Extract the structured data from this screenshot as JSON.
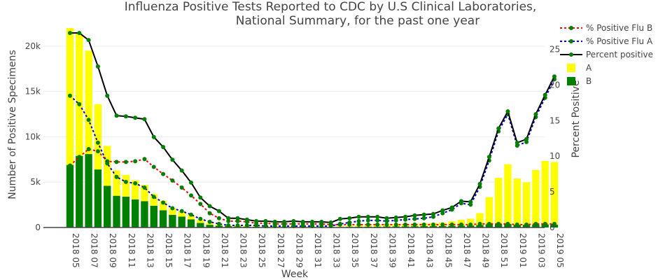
{
  "chart_data": {
    "type": "bar",
    "title_lines": [
      "Influenza Positive Tests Reported to CDC by U.S Clinical Laboratories,",
      "National Summary, for the past one year"
    ],
    "xlabel": "Week",
    "ylabel_left": "Number of Positive Specimens",
    "ylabel_right": "Percent Positive",
    "ylim_left": [
      0,
      22000
    ],
    "ylim_right": [
      0,
      28
    ],
    "yticks_left": [
      0,
      5000,
      10000,
      15000,
      20000
    ],
    "ytick_labels_left": [
      "0",
      "5k",
      "10k",
      "15k",
      "20k"
    ],
    "yticks_right": [
      0,
      5,
      10,
      15,
      20,
      25
    ],
    "ytick_labels_right": [
      "0",
      "5",
      "10",
      "15",
      "20",
      "25"
    ],
    "grid": true,
    "legend_position": "top-right",
    "categories": [
      "2018 05",
      "2018 06",
      "2018 07",
      "2018 08",
      "2018 09",
      "2018 10",
      "2018 11",
      "2018 12",
      "2018 13",
      "2018 14",
      "2018 15",
      "2018 16",
      "2018 17",
      "2018 18",
      "2018 19",
      "2018 20",
      "2018 21",
      "2018 22",
      "2018 23",
      "2018 24",
      "2018 25",
      "2018 26",
      "2018 27",
      "2018 28",
      "2018 29",
      "2018 30",
      "2018 31",
      "2018 32",
      "2018 33",
      "2018 34",
      "2018 35",
      "2018 36",
      "2018 37",
      "2018 38",
      "2018 39",
      "2018 40",
      "2018 41",
      "2018 42",
      "2018 43",
      "2018 44",
      "2018 45",
      "2018 46",
      "2018 47",
      "2018 48",
      "2018 49",
      "2018 50",
      "2018 51",
      "2018 52",
      "2019 01",
      "2019 02",
      "2019 03",
      "2019 04",
      "2019 05"
    ],
    "xtick_labels": [
      "2018 05",
      "2018 07",
      "2018 09",
      "2018 11",
      "2018 13",
      "2018 15",
      "2018 17",
      "2018 19",
      "2018 21",
      "2018 23",
      "2018 25",
      "2018 27",
      "2018 29",
      "2018 31",
      "2018 33",
      "2018 35",
      "2018 37",
      "2018 39",
      "2018 41",
      "2018 43",
      "2018 45",
      "2018 47",
      "2018 49",
      "2018 51",
      "2019 01",
      "2019 03",
      "2019 05"
    ],
    "bar_series": [
      {
        "name": "A",
        "color": "#ffff00",
        "values": [
          15100,
          13500,
          11400,
          7200,
          4400,
          2800,
          2400,
          2100,
          1800,
          1300,
          1050,
          750,
          600,
          480,
          330,
          210,
          140,
          110,
          100,
          90,
          80,
          70,
          65,
          60,
          60,
          60,
          60,
          60,
          70,
          80,
          110,
          150,
          180,
          200,
          220,
          250,
          280,
          300,
          330,
          350,
          400,
          500,
          650,
          750,
          1300,
          3000,
          5100,
          6600,
          5100,
          4700,
          6000,
          7000,
          6900
        ]
      },
      {
        "name": "B",
        "color": "#008000",
        "values": [
          6900,
          7900,
          8100,
          6400,
          4600,
          3500,
          3400,
          3100,
          2900,
          2400,
          1900,
          1400,
          1200,
          900,
          500,
          300,
          200,
          150,
          120,
          100,
          80,
          70,
          60,
          60,
          60,
          50,
          50,
          50,
          50,
          60,
          70,
          90,
          100,
          100,
          110,
          120,
          130,
          140,
          150,
          150,
          160,
          180,
          200,
          220,
          280,
          350,
          380,
          380,
          300,
          300,
          340,
          340,
          320
        ]
      }
    ],
    "line_series": [
      {
        "name": "Percent positive",
        "color": "#000000",
        "style": "solid",
        "values": [
          27.3,
          27.3,
          26.3,
          22.6,
          18.5,
          15.7,
          15.6,
          15.4,
          15.2,
          12.7,
          11.3,
          9.5,
          8.0,
          6.3,
          4.2,
          3.0,
          2.3,
          1.3,
          1.3,
          1.1,
          0.9,
          0.9,
          0.8,
          0.8,
          0.9,
          0.8,
          0.8,
          0.8,
          0.7,
          1.2,
          1.3,
          1.5,
          1.5,
          1.5,
          1.3,
          1.4,
          1.5,
          1.7,
          1.8,
          1.9,
          2.4,
          2.8,
          3.7,
          3.6,
          6.1,
          9.9,
          13.9,
          16.3,
          11.9,
          12.4,
          15.9,
          18.6,
          21.2
        ]
      },
      {
        "name": "% Positive Flu A",
        "color": "#0000cc",
        "style": "dotted",
        "values": [
          18.5,
          17.3,
          15.1,
          11.9,
          9.0,
          7.1,
          6.4,
          6.2,
          5.6,
          4.3,
          3.5,
          2.7,
          2.3,
          1.8,
          1.2,
          0.8,
          0.5,
          0.3,
          0.3,
          0.3,
          0.3,
          0.2,
          0.2,
          0.2,
          0.2,
          0.2,
          0.2,
          0.2,
          0.2,
          0.5,
          0.7,
          0.9,
          1.0,
          1.0,
          0.9,
          1.0,
          1.1,
          1.2,
          1.3,
          1.5,
          2.0,
          2.5,
          3.4,
          3.2,
          5.7,
          9.4,
          13.5,
          15.9,
          11.5,
          12.0,
          15.5,
          18.2,
          20.8
        ]
      },
      {
        "name": "% Positive Flu B",
        "color": "#ff0000",
        "style": "dotted",
        "values": [
          8.7,
          9.9,
          11.0,
          10.7,
          9.3,
          9.2,
          9.2,
          9.3,
          9.6,
          8.5,
          7.5,
          6.6,
          5.6,
          4.5,
          3.3,
          2.0,
          1.3,
          0.9,
          0.9,
          0.8,
          0.6,
          0.6,
          0.5,
          0.5,
          0.5,
          0.5,
          0.5,
          0.5,
          0.4,
          0.4,
          0.4,
          0.4,
          0.4,
          0.4,
          0.4,
          0.4,
          0.4,
          0.4,
          0.4,
          0.4,
          0.4,
          0.4,
          0.4,
          0.4,
          0.5,
          0.5,
          0.5,
          0.5,
          0.4,
          0.4,
          0.5,
          0.5,
          0.5
        ]
      }
    ],
    "marker_color": "#008000",
    "legend": [
      {
        "label": "% Positive Flu B",
        "kind": "line",
        "color": "#ff0000",
        "style": "dotted"
      },
      {
        "label": "% Positive Flu A",
        "kind": "line",
        "color": "#0000cc",
        "style": "dotted"
      },
      {
        "label": "Percent positive",
        "kind": "line",
        "color": "#000000",
        "style": "solid"
      },
      {
        "label": "A",
        "kind": "box",
        "color": "#ffff00"
      },
      {
        "label": "B",
        "kind": "box",
        "color": "#008000"
      }
    ]
  }
}
